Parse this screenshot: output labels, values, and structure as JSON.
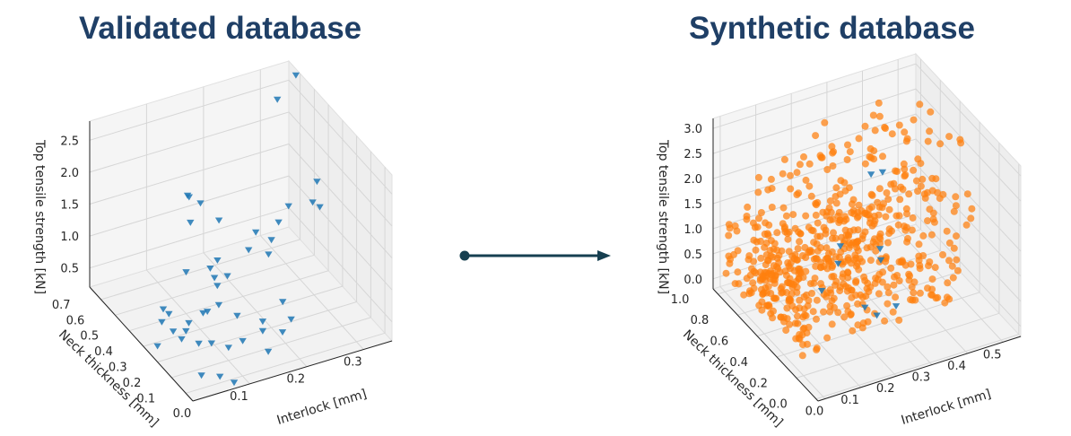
{
  "panels": [
    {
      "title": "Validated database"
    },
    {
      "title": "Synthetic database"
    }
  ],
  "colors": {
    "title": "#1f3f66",
    "validated": "#1f77b4",
    "synthetic": "#ff7f0e",
    "arrow": "#163f50",
    "pane": "#f2f2f2",
    "grid": "#d6d6d6"
  },
  "chart_data": [
    {
      "type": "scatter",
      "projection": "3d",
      "title": "Validated database",
      "xlabel": "Interlock [mm]",
      "ylabel": "Neck thickness [mm]",
      "zlabel": "Top tensile strength [kN]",
      "x_ticks": [
        "0.0",
        "0.1",
        "0.2",
        "0.3"
      ],
      "y_ticks": [
        "0.1",
        "0.2",
        "0.3",
        "0.4",
        "0.5",
        "0.6",
        "0.7"
      ],
      "z_ticks": [
        "0.5",
        "1.0",
        "1.5",
        "2.0",
        "2.5"
      ],
      "xlim": [
        0,
        0.35
      ],
      "ylim": [
        0.05,
        0.78
      ],
      "zlim": [
        0.2,
        2.8
      ],
      "grid": true,
      "series": [
        {
          "marker": "triangle-down",
          "color": "#1f77b4",
          "points": [
            [
              0.31,
              0.7,
              2.5
            ],
            [
              0.35,
              0.73,
              2.7
            ],
            [
              0.33,
              0.5,
              1.65
            ],
            [
              0.31,
              0.45,
              1.5
            ],
            [
              0.33,
              0.48,
              1.3
            ],
            [
              0.28,
              0.5,
              1.4
            ],
            [
              0.25,
              0.45,
              1.35
            ],
            [
              0.23,
              0.42,
              1.2
            ],
            [
              0.21,
              0.45,
              1.3
            ],
            [
              0.19,
              0.42,
              1.15
            ],
            [
              0.22,
              0.4,
              1.05
            ],
            [
              0.15,
              0.6,
              1.55
            ],
            [
              0.13,
              0.6,
              1.7
            ],
            [
              0.12,
              0.55,
              1.45
            ],
            [
              0.17,
              0.55,
              1.35
            ],
            [
              0.08,
              0.42,
              1.1
            ],
            [
              0.12,
              0.38,
              1.0
            ],
            [
              0.13,
              0.45,
              0.95
            ],
            [
              0.15,
              0.48,
              0.95
            ],
            [
              0.13,
              0.4,
              0.8
            ],
            [
              0.16,
              0.45,
              0.75
            ],
            [
              0.12,
              0.35,
              0.65
            ],
            [
              0.1,
              0.35,
              0.6
            ],
            [
              0.14,
              0.3,
              0.55
            ],
            [
              0.08,
              0.3,
              0.75
            ],
            [
              0.06,
              0.32,
              0.6
            ],
            [
              0.04,
              0.35,
              0.45
            ],
            [
              0.05,
              0.3,
              0.55
            ],
            [
              0.02,
              0.35,
              0.65
            ],
            [
              0.03,
              0.25,
              0.6
            ],
            [
              0.06,
              0.25,
              0.45
            ],
            [
              0.02,
              0.3,
              0.9
            ],
            [
              0.01,
              0.3,
              1.0
            ],
            [
              0.0,
              0.3,
              0.45
            ],
            [
              0.07,
              0.2,
              0.55
            ],
            [
              0.1,
              0.2,
              0.4
            ],
            [
              0.12,
              0.18,
              0.5
            ],
            [
              0.16,
              0.2,
              0.5
            ],
            [
              0.18,
              0.28,
              0.4
            ],
            [
              0.22,
              0.3,
              0.55
            ],
            [
              0.21,
              0.2,
              0.55
            ],
            [
              0.19,
              0.18,
              0.45
            ],
            [
              0.15,
              0.12,
              0.4
            ],
            [
              0.06,
              0.1,
              0.3
            ],
            [
              0.08,
              0.08,
              0.2
            ],
            [
              0.04,
              0.15,
              0.25
            ],
            [
              0.09,
              0.45,
              2.2
            ]
          ]
        }
      ]
    },
    {
      "type": "scatter",
      "projection": "3d",
      "title": "Synthetic database",
      "xlabel": "Interlock [mm]",
      "ylabel": "Neck thickness [mm]",
      "zlabel": "Top tensile strength [kN]",
      "x_ticks": [
        "0.0",
        "0.1",
        "0.2",
        "0.3",
        "0.4",
        "0.5"
      ],
      "y_ticks": [
        "0.0",
        "0.2",
        "0.4",
        "0.6",
        "0.8",
        "1.0"
      ],
      "z_ticks": [
        "0.0",
        "0.5",
        "1.0",
        "1.5",
        "2.0",
        "2.5",
        "3.0"
      ],
      "xlim": [
        -0.02,
        0.55
      ],
      "ylim": [
        -0.02,
        1.05
      ],
      "zlim": [
        -0.2,
        3.2
      ],
      "grid": true,
      "series": [
        {
          "name": "",
          "marker": "circle",
          "color": "#ff7f0e",
          "generator": {
            "count": 620,
            "x_range": [
              0.0,
              0.5
            ],
            "y_range": [
              0.05,
              1.0
            ],
            "z_range": [
              0.0,
              3.0
            ]
          }
        },
        {
          "marker": "triangle-down",
          "color": "#1f77b4",
          "points": [
            [
              0.3,
              0.6,
              2.3
            ],
            [
              0.36,
              0.7,
              2.0
            ],
            [
              0.2,
              0.55,
              1.2
            ],
            [
              0.27,
              0.4,
              1.3
            ],
            [
              0.18,
              0.5,
              1.0
            ],
            [
              0.12,
              0.45,
              0.7
            ],
            [
              0.2,
              0.3,
              0.5
            ],
            [
              0.26,
              0.2,
              0.6
            ],
            [
              0.3,
              0.5,
              0.8
            ],
            [
              0.22,
              0.25,
              0.4
            ]
          ]
        }
      ]
    }
  ]
}
